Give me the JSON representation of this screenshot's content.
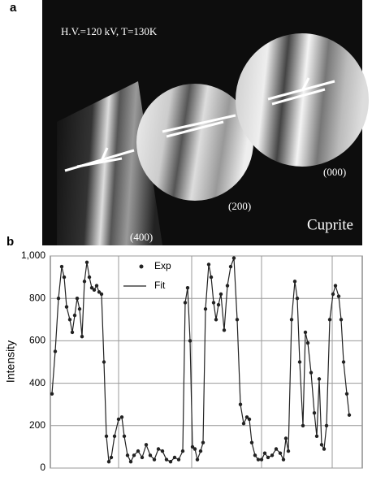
{
  "panel_a": {
    "label": "a",
    "conditions": "H.V.=120 kV, T=130K",
    "spots": [
      "(000)",
      "(200)",
      "(400)"
    ],
    "material": "Cuprite"
  },
  "panel_b": {
    "label": "b"
  },
  "chart_data": {
    "type": "line",
    "ylabel": "Intensity",
    "x": [
      2,
      6,
      10,
      14,
      17,
      20,
      24,
      27,
      30,
      33,
      36,
      39,
      42,
      45,
      48,
      51,
      54,
      57,
      60,
      63,
      66,
      69,
      72,
      75,
      79,
      84,
      88,
      91,
      95,
      99,
      103,
      108,
      113,
      118,
      123,
      128,
      133,
      138,
      143,
      148,
      153,
      158,
      163,
      166,
      169,
      172,
      175,
      178,
      181,
      185,
      188,
      191,
      195,
      198,
      201,
      204,
      207,
      210,
      214,
      218,
      222,
      226,
      230,
      234,
      238,
      242,
      245,
      248,
      252,
      256,
      260,
      264,
      268,
      273,
      278,
      283,
      287,
      290,
      293,
      297,
      301,
      304,
      307,
      311,
      314,
      317,
      321,
      325,
      328,
      331,
      334,
      337,
      340,
      344,
      348,
      351,
      355,
      358,
      361,
      365,
      368
    ],
    "series": [
      {
        "name": "Exp",
        "color": "#222222",
        "marker": "dot",
        "values": [
          350,
          550,
          800,
          950,
          900,
          760,
          700,
          640,
          720,
          800,
          750,
          620,
          880,
          970,
          900,
          850,
          840,
          860,
          830,
          820,
          500,
          150,
          30,
          50,
          150,
          230,
          240,
          150,
          60,
          30,
          60,
          80,
          50,
          110,
          60,
          40,
          90,
          80,
          40,
          30,
          50,
          40,
          80,
          780,
          850,
          600,
          100,
          90,
          40,
          80,
          120,
          750,
          960,
          900,
          780,
          700,
          770,
          820,
          650,
          860,
          950,
          990,
          700,
          300,
          210,
          240,
          230,
          120,
          60,
          40,
          40,
          70,
          50,
          60,
          90,
          70,
          40,
          140,
          80,
          700,
          880,
          800,
          500,
          200,
          640,
          590,
          450,
          260,
          150,
          420,
          110,
          90,
          200,
          700,
          820,
          860,
          810,
          700,
          500,
          350,
          250
        ]
      },
      {
        "name": "Fit",
        "color": "#222222",
        "marker": "line",
        "values": [
          350,
          550,
          800,
          950,
          900,
          760,
          700,
          640,
          720,
          800,
          750,
          620,
          880,
          970,
          900,
          850,
          840,
          860,
          830,
          820,
          500,
          150,
          30,
          50,
          150,
          230,
          240,
          150,
          60,
          30,
          60,
          80,
          50,
          110,
          60,
          40,
          90,
          80,
          40,
          30,
          50,
          40,
          80,
          780,
          850,
          600,
          100,
          90,
          40,
          80,
          120,
          750,
          960,
          900,
          780,
          700,
          770,
          820,
          650,
          860,
          950,
          990,
          700,
          300,
          210,
          240,
          230,
          120,
          60,
          40,
          40,
          70,
          50,
          60,
          90,
          70,
          40,
          140,
          80,
          700,
          880,
          800,
          500,
          200,
          640,
          590,
          450,
          260,
          150,
          420,
          110,
          90,
          200,
          700,
          820,
          860,
          810,
          700,
          500,
          350,
          250
        ]
      }
    ],
    "xlim": [
      0,
      384
    ],
    "xticks": [
      84,
      174,
      260,
      347
    ],
    "ylim": [
      0,
      1000
    ],
    "yticks": [
      0,
      200,
      400,
      600,
      800,
      {
        "value": 1000,
        "label": "1,000"
      }
    ],
    "grid": true
  }
}
